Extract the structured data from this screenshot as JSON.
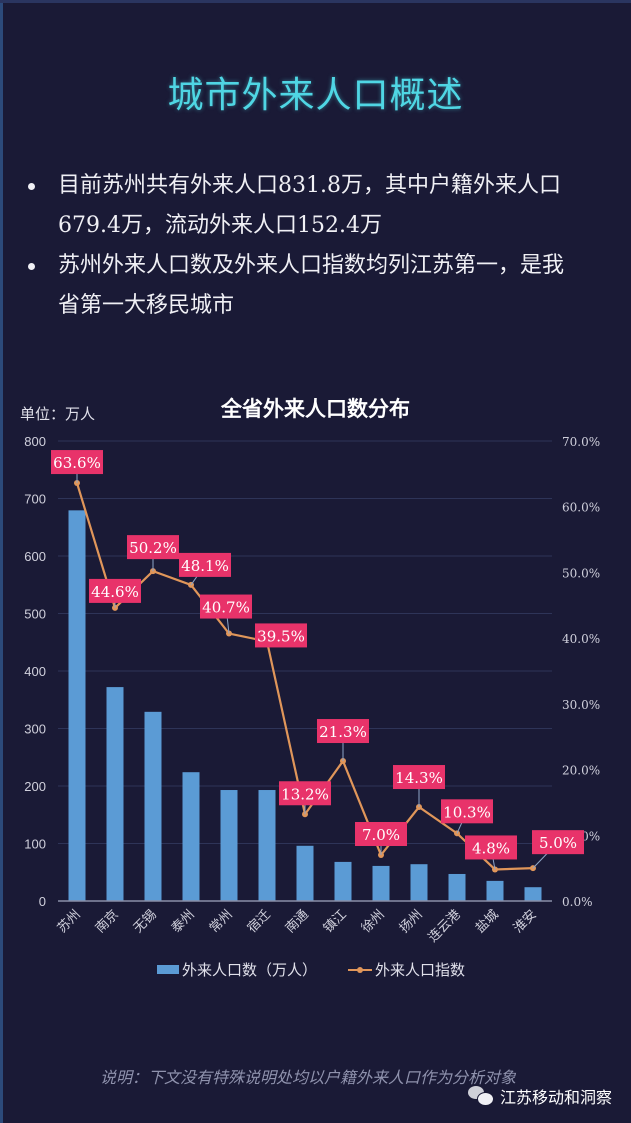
{
  "page": {
    "title": "城市外来人口概述",
    "bullets": [
      "目前苏州共有外来人口831.8万，其中户籍外来人口679.4万，流动外来人口152.4万",
      "苏州外来人口数及外来人口指数均列江苏第一，是我省第一大移民城市"
    ],
    "bullet_lines": [
      [
        "目前苏州共有外来人口831.8万，其中户籍外来人口",
        "679.4万，流动外来人口152.4万"
      ],
      [
        "苏州外来人口数及外来人口指数均列江苏第一，是我",
        "省第一大移民城市"
      ]
    ],
    "note": "说明：下文没有特殊说明处均以户籍外来人口作为分析对象",
    "brand": "江苏移动和洞察",
    "brand_icon": "wechat-icon"
  },
  "colors": {
    "background": "#1a1a36",
    "title": "#4fd6e4",
    "bar": "#5b9bd5",
    "line": "#e0965a",
    "label_bg": "#e8336a",
    "grid": "#2e3458",
    "axis_text": "#d0d0dc"
  },
  "chart_data": {
    "type": "bar+line",
    "title": "全省外来人口数分布",
    "unit_label": "单位：万人",
    "xlabel": "",
    "ylabel": "外来人口数（万人）",
    "y2label": "外来人口指数",
    "categories": [
      "苏州",
      "南京",
      "无锡",
      "泰州",
      "常州",
      "宿迁",
      "南通",
      "镇江",
      "徐州",
      "扬州",
      "连云港",
      "盐城",
      "淮安"
    ],
    "series": [
      {
        "name": "外来人口数（万人）",
        "type": "bar",
        "axis": "left",
        "values": [
          679.4,
          372,
          329,
          224,
          193,
          193,
          96,
          68,
          61,
          64,
          47,
          35,
          24
        ]
      },
      {
        "name": "外来人口指数",
        "type": "line",
        "axis": "right",
        "values": [
          63.6,
          44.6,
          50.2,
          48.1,
          40.7,
          39.5,
          13.2,
          21.3,
          7.0,
          14.3,
          10.3,
          4.8,
          5.0
        ],
        "labels": [
          "63.6%",
          "44.6%",
          "50.2%",
          "48.1%",
          "40.7%",
          "39.5%",
          "13.2%",
          "21.3%",
          "7.0%",
          "14.3%",
          "10.3%",
          "4.8%",
          "5.0%"
        ]
      }
    ],
    "ylim": [
      0,
      800
    ],
    "y_ticks": [
      0,
      100,
      200,
      300,
      400,
      500,
      600,
      700,
      800
    ],
    "y2lim": [
      0,
      70
    ],
    "y2_ticks": [
      "0.0%",
      "10.0%",
      "20.0%",
      "30.0%",
      "40.0%",
      "50.0%",
      "60.0%",
      "70.0%"
    ],
    "grid": true,
    "legend_position": "bottom",
    "legend": [
      "外来人口数（万人）",
      "外来人口指数"
    ]
  }
}
